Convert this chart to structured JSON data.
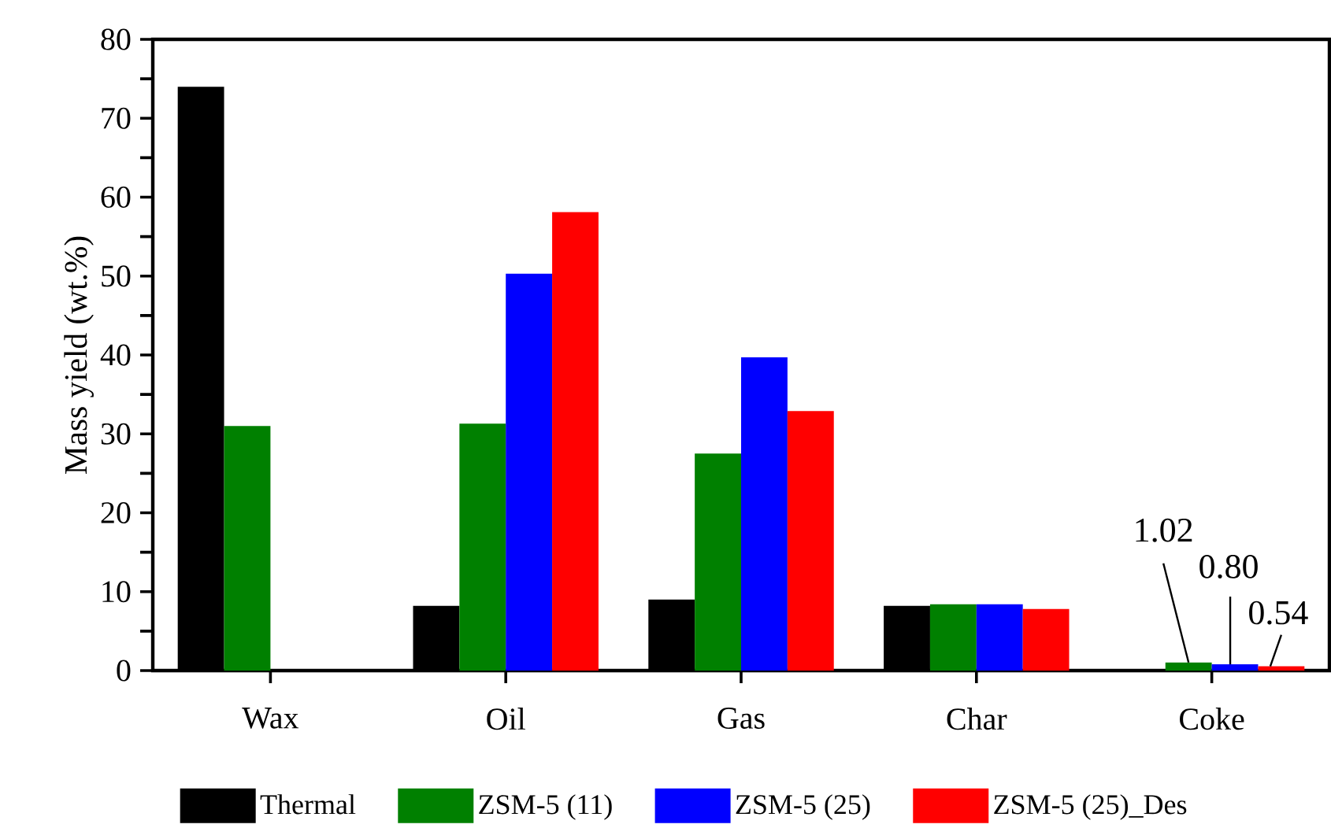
{
  "chart_data": {
    "type": "bar",
    "ylabel": "Mass yield (wt.%)",
    "categories": [
      "Wax",
      "Oil",
      "Gas",
      "Char",
      "Coke"
    ],
    "series": [
      {
        "name": "Thermal",
        "color": "#000000",
        "values": [
          74.0,
          8.2,
          9.0,
          8.2,
          null
        ]
      },
      {
        "name": "ZSM-5 (11)",
        "color": "#008000",
        "values": [
          31.0,
          31.3,
          27.5,
          8.4,
          1.02
        ],
        "value_labels": [
          null,
          null,
          null,
          null,
          "1.02"
        ]
      },
      {
        "name": "ZSM-5 (25)",
        "color": "#0000ff",
        "values": [
          null,
          50.3,
          39.7,
          8.4,
          0.8
        ],
        "value_labels": [
          null,
          null,
          null,
          null,
          "0.80"
        ]
      },
      {
        "name": "ZSM-5 (25)_Des",
        "color": "#ff0000",
        "values": [
          null,
          58.1,
          32.9,
          7.8,
          0.54
        ],
        "value_labels": [
          null,
          null,
          null,
          null,
          "0.54"
        ]
      }
    ],
    "ylim": [
      0,
      80
    ],
    "yticks": [
      0,
      10,
      20,
      30,
      40,
      50,
      60,
      70,
      80
    ],
    "grid": false,
    "legend": "bottom"
  }
}
